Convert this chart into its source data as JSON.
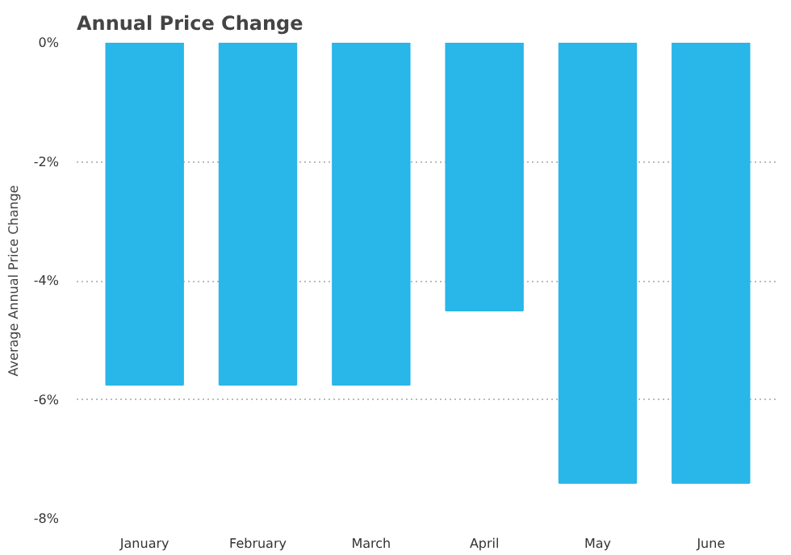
{
  "chart_data": {
    "type": "bar",
    "title": "Annual Price Change",
    "ylabel": "Average Annual Price Change",
    "categories": [
      "January",
      "February",
      "March",
      "April",
      "May",
      "June"
    ],
    "values": [
      -5.75,
      -5.75,
      -5.75,
      -4.5,
      -7.4,
      -7.4
    ],
    "color": "#29b6e8",
    "ylim": [
      -8,
      0
    ],
    "yticks": [
      {
        "value": 0,
        "label": "0%"
      },
      {
        "value": -2,
        "label": "-2%"
      },
      {
        "value": -4,
        "label": "-4%"
      },
      {
        "value": -6,
        "label": "-6%"
      },
      {
        "value": -8,
        "label": "-8%"
      }
    ],
    "grid": "y"
  }
}
